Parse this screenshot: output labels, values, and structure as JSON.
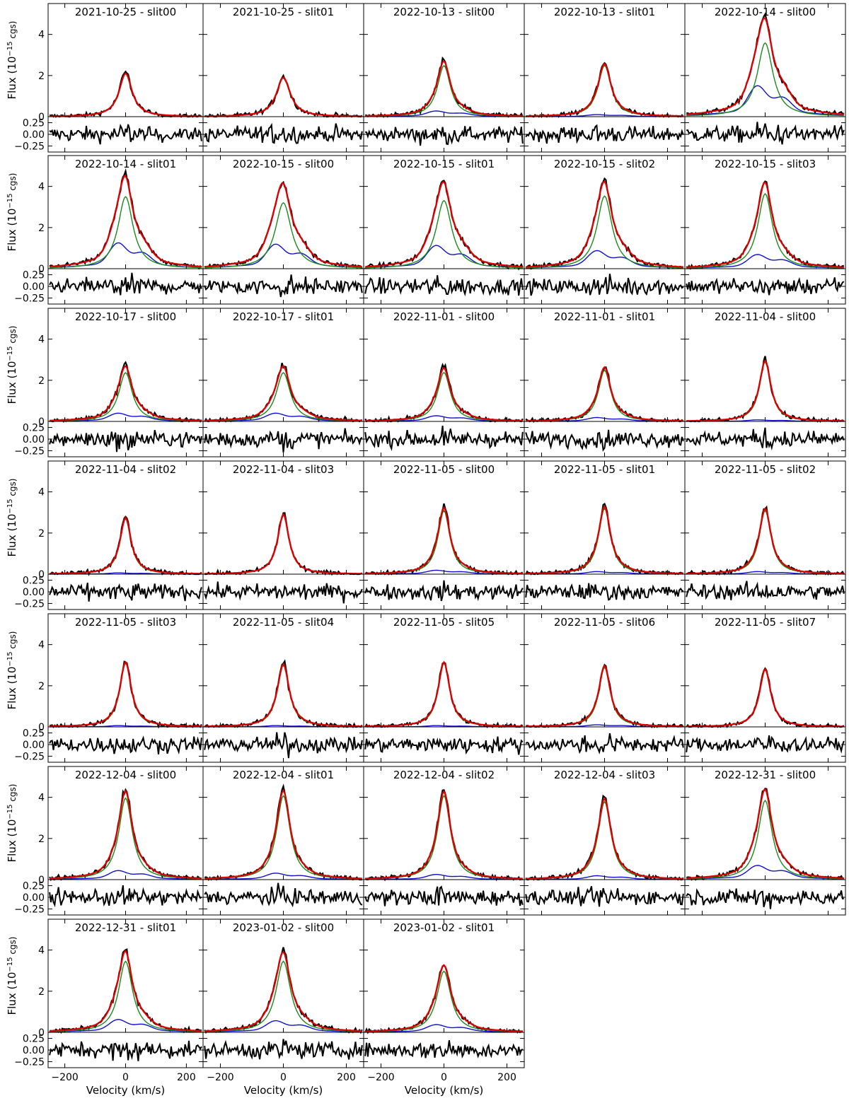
{
  "chart_data": {
    "type": "line",
    "description_grid": "7 rows x 5 columns of line-profile panels, each with a residual sub-panel",
    "units": {
      "flux_prefix": "Flux (10",
      "flux_exp": "−15",
      "flux_suffix": " cgs)",
      "xlabel": "Velocity (km/s)"
    },
    "xlim": [
      -255,
      255
    ],
    "ylim": [
      0,
      5.5
    ],
    "resid_ylim": [
      -0.38,
      0.38
    ],
    "x_ticks": [
      -200,
      0,
      200
    ],
    "x_tick_labels": [
      "−200",
      "0",
      "200"
    ],
    "y_ticks": [
      0,
      2,
      4
    ],
    "y_tick_labels": [
      "0",
      "2",
      "4"
    ],
    "resid_ticks": [
      0.25,
      0.0,
      -0.25
    ],
    "resid_tick_labels": [
      "0.25",
      "0.00",
      "−0.25"
    ],
    "series_colors": {
      "observed": "#000000",
      "total_fit": "#e00000",
      "narrow_component": "#1a8a1a",
      "broad_component": "#1010d0",
      "residual": "#000000"
    },
    "panels": [
      {
        "title": "2021-10-25 - slit00",
        "peak": 2.1,
        "w": 26,
        "blue": 0.0
      },
      {
        "title": "2021-10-25 - slit01",
        "peak": 1.9,
        "w": 27,
        "blue": 0.0
      },
      {
        "title": "2022-10-13 - slit00",
        "peak": 2.5,
        "w": 25,
        "blue": 0.22
      },
      {
        "title": "2022-10-13 - slit01",
        "peak": 2.5,
        "w": 25,
        "blue": 0.08
      },
      {
        "title": "2022-10-14 - slit00",
        "peak": 3.7,
        "w": 30,
        "blue": 1.2
      },
      {
        "title": "2022-10-14 - slit01",
        "peak": 3.6,
        "w": 30,
        "blue": 1.0
      },
      {
        "title": "2022-10-15 - slit00",
        "peak": 3.3,
        "w": 31,
        "blue": 0.95
      },
      {
        "title": "2022-10-15 - slit01",
        "peak": 3.4,
        "w": 30,
        "blue": 0.9
      },
      {
        "title": "2022-10-15 - slit02",
        "peak": 3.6,
        "w": 29,
        "blue": 0.7
      },
      {
        "title": "2022-10-15 - slit03",
        "peak": 3.7,
        "w": 28,
        "blue": 0.55
      },
      {
        "title": "2022-10-17 - slit00",
        "peak": 2.4,
        "w": 27,
        "blue": 0.32
      },
      {
        "title": "2022-10-17 - slit01",
        "peak": 2.4,
        "w": 27,
        "blue": 0.32
      },
      {
        "title": "2022-11-01 - slit00",
        "peak": 2.4,
        "w": 25,
        "blue": 0.22
      },
      {
        "title": "2022-11-01 - slit01",
        "peak": 2.5,
        "w": 24,
        "blue": 0.15
      },
      {
        "title": "2022-11-04 - slit00",
        "peak": 2.9,
        "w": 22,
        "blue": 0.06
      },
      {
        "title": "2022-11-04 - slit02",
        "peak": 2.7,
        "w": 22,
        "blue": 0.05
      },
      {
        "title": "2022-11-04 - slit03",
        "peak": 2.9,
        "w": 22,
        "blue": 0.0
      },
      {
        "title": "2022-11-05 - slit00",
        "peak": 3.1,
        "w": 23,
        "blue": 0.15
      },
      {
        "title": "2022-11-05 - slit01",
        "peak": 3.2,
        "w": 23,
        "blue": 0.1
      },
      {
        "title": "2022-11-05 - slit02",
        "peak": 3.1,
        "w": 23,
        "blue": 0.1
      },
      {
        "title": "2022-11-05 - slit03",
        "peak": 3.1,
        "w": 23,
        "blue": 0.05
      },
      {
        "title": "2022-11-05 - slit04",
        "peak": 3.0,
        "w": 23,
        "blue": 0.05
      },
      {
        "title": "2022-11-05 - slit05",
        "peak": 3.1,
        "w": 22,
        "blue": 0.05
      },
      {
        "title": "2022-11-05 - slit06",
        "peak": 2.9,
        "w": 22,
        "blue": 0.08
      },
      {
        "title": "2022-11-05 - slit07",
        "peak": 2.8,
        "w": 22,
        "blue": 0.0
      },
      {
        "title": "2022-12-04 - slit00",
        "peak": 4.0,
        "w": 27,
        "blue": 0.35
      },
      {
        "title": "2022-12-04 - slit01",
        "peak": 4.1,
        "w": 26,
        "blue": 0.25
      },
      {
        "title": "2022-12-04 - slit02",
        "peak": 4.1,
        "w": 25,
        "blue": 0.2
      },
      {
        "title": "2022-12-04 - slit03",
        "peak": 3.8,
        "w": 25,
        "blue": 0.15
      },
      {
        "title": "2022-12-31 - slit00",
        "peak": 3.9,
        "w": 27,
        "blue": 0.55
      },
      {
        "title": "2022-12-31 - slit01",
        "peak": 3.5,
        "w": 28,
        "blue": 0.5
      },
      {
        "title": "2023-01-02 - slit00",
        "peak": 3.5,
        "w": 28,
        "blue": 0.45
      },
      {
        "title": "2023-01-02 - slit01",
        "peak": 3.0,
        "w": 27,
        "blue": 0.3
      }
    ]
  }
}
